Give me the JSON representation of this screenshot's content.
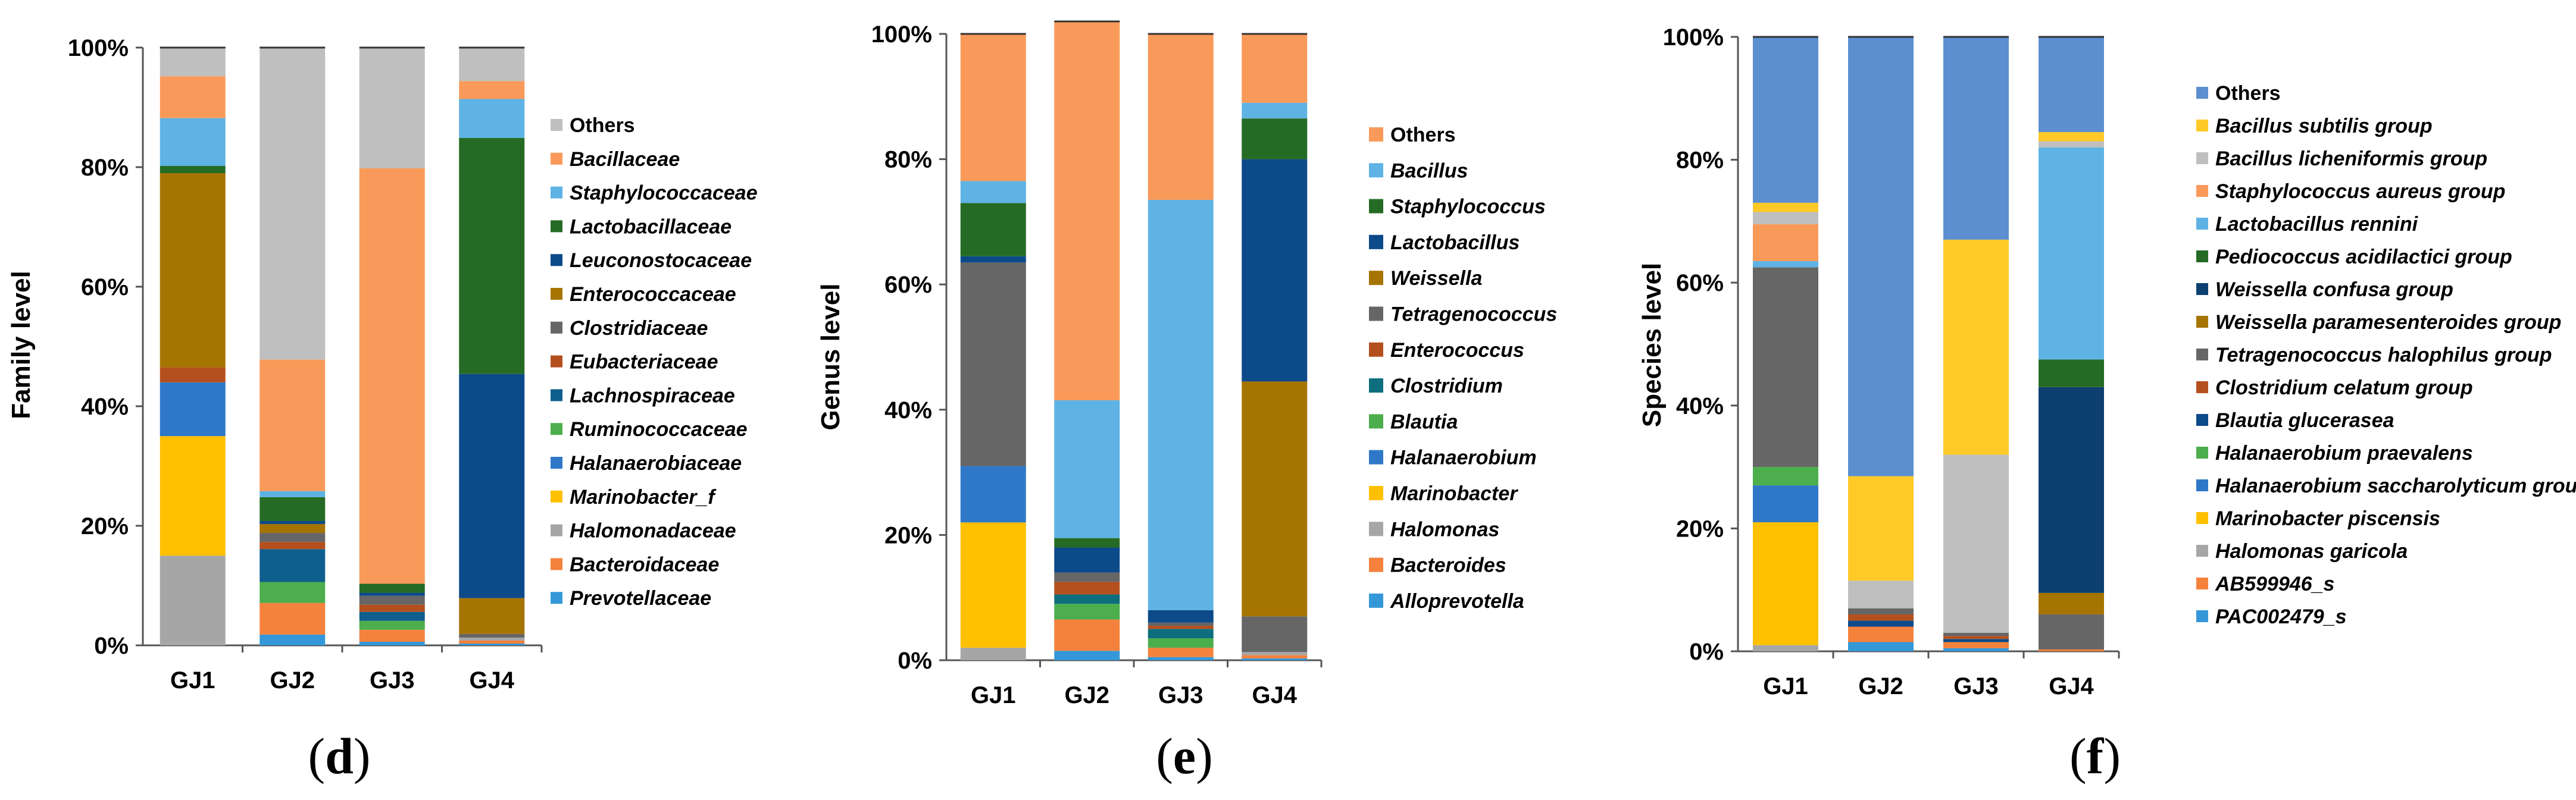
{
  "chart_data": [
    {
      "type": "bar",
      "stacked": true,
      "panel": "d",
      "ylabel": "Family level",
      "yticks": [
        "0%",
        "20%",
        "40%",
        "60%",
        "80%",
        "100%"
      ],
      "ylim": [
        0,
        100
      ],
      "categories": [
        "GJ1",
        "GJ2",
        "GJ3",
        "GJ4"
      ],
      "series": [
        {
          "name": "Prevotellaceae",
          "italic": true,
          "color": "#3498d8",
          "values": [
            0,
            1.8,
            0.6,
            0.3
          ]
        },
        {
          "name": "Bacteroidaceae",
          "italic": true,
          "color": "#f5823c",
          "values": [
            0,
            5.3,
            2.0,
            0.5
          ]
        },
        {
          "name": "Halomonadaceae",
          "italic": true,
          "color": "#a6a6a6",
          "values": [
            15,
            0,
            0,
            0.5
          ]
        },
        {
          "name": "Marinobacter_f",
          "italic": true,
          "color": "#ffc000",
          "values": [
            20,
            0,
            0,
            0
          ]
        },
        {
          "name": "Halanaerobiaceae",
          "italic": true,
          "color": "#2f78c8",
          "values": [
            9,
            0,
            0,
            0
          ]
        },
        {
          "name": "Ruminococcaceae",
          "italic": true,
          "color": "#4cae4c",
          "values": [
            0,
            3.5,
            1.5,
            0
          ]
        },
        {
          "name": "Lachnospiraceae",
          "italic": true,
          "color": "#0e5e8e",
          "values": [
            0,
            5.5,
            1.5,
            0
          ]
        },
        {
          "name": "Eubacteriaceae",
          "italic": true,
          "color": "#b4501e",
          "values": [
            2.5,
            1.2,
            1.2,
            0
          ]
        },
        {
          "name": "Clostridiaceae",
          "italic": true,
          "color": "#666666",
          "values": [
            0,
            1.5,
            1.5,
            0.6
          ]
        },
        {
          "name": "Enterococcaceae",
          "italic": true,
          "color": "#a67400",
          "values": [
            32.5,
            1.5,
            0,
            6
          ]
        },
        {
          "name": "Leuconostocaceae",
          "italic": true,
          "color": "#0c4a8a",
          "values": [
            0,
            0.5,
            0.5,
            37.5
          ]
        },
        {
          "name": "Lactobacillaceae",
          "italic": true,
          "color": "#256b25",
          "values": [
            1.2,
            4.0,
            1.5,
            39.5
          ]
        },
        {
          "name": "Staphylococcaceae",
          "italic": true,
          "color": "#5eb3e4",
          "values": [
            8,
            1.0,
            0,
            6.5
          ]
        },
        {
          "name": "Bacillaceae",
          "italic": true,
          "color": "#fa9a5a",
          "values": [
            7,
            22.0,
            69.5,
            3
          ]
        },
        {
          "name": "Others",
          "italic": false,
          "color": "#bfbfbf",
          "values": [
            4.8,
            52.2,
            20.2,
            5.6
          ]
        }
      ]
    },
    {
      "type": "bar",
      "stacked": true,
      "panel": "e",
      "ylabel": "Genus  level",
      "yticks": [
        "0%",
        "20%",
        "40%",
        "60%",
        "80%",
        "100%"
      ],
      "ylim": [
        0,
        100
      ],
      "categories": [
        "GJ1",
        "GJ2",
        "GJ3",
        "GJ4"
      ],
      "series": [
        {
          "name": "Alloprevotella",
          "italic": true,
          "color": "#3498d8",
          "values": [
            0,
            1.5,
            0.5,
            0.3
          ]
        },
        {
          "name": "Bacteroides",
          "italic": true,
          "color": "#f5823c",
          "values": [
            0,
            5.0,
            1.5,
            0.5
          ]
        },
        {
          "name": "Halomonas",
          "italic": true,
          "color": "#a6a6a6",
          "values": [
            2,
            0,
            0,
            0.5
          ]
        },
        {
          "name": "Marinobacter",
          "italic": true,
          "color": "#ffc000",
          "values": [
            20,
            0,
            0,
            0
          ]
        },
        {
          "name": "Halanaerobium",
          "italic": true,
          "color": "#2f78c8",
          "values": [
            9,
            0,
            0,
            0
          ]
        },
        {
          "name": "Blautia",
          "italic": true,
          "color": "#4cae4c",
          "values": [
            0,
            2.5,
            1.5,
            0
          ]
        },
        {
          "name": "Clostridium",
          "italic": true,
          "color": "#0e6e7e",
          "values": [
            0,
            1.5,
            1.5,
            0
          ]
        },
        {
          "name": "Enterococcus",
          "italic": true,
          "color": "#b4501e",
          "values": [
            0,
            2.0,
            0.5,
            0
          ]
        },
        {
          "name": "Tetragenococcus",
          "italic": true,
          "color": "#666666",
          "values": [
            32.5,
            1.5,
            0.5,
            5.7
          ]
        },
        {
          "name": "Weissella",
          "italic": true,
          "color": "#a67400",
          "values": [
            0,
            0,
            0,
            37.5
          ]
        },
        {
          "name": "Lactobacillus",
          "italic": true,
          "color": "#0c4a8a",
          "values": [
            1,
            4.0,
            2.0,
            35.5
          ]
        },
        {
          "name": "Staphylococcus",
          "italic": true,
          "color": "#256b25",
          "values": [
            8.5,
            1.5,
            0,
            6.5
          ]
        },
        {
          "name": "Bacillus",
          "italic": true,
          "color": "#5eb3e4",
          "values": [
            3.5,
            22.0,
            65.5,
            2.5
          ]
        },
        {
          "name": "Others",
          "italic": false,
          "color": "#fa9a5a",
          "values": [
            23.5,
            60.5,
            26.5,
            11
          ]
        }
      ]
    },
    {
      "type": "bar",
      "stacked": true,
      "panel": "f",
      "ylabel": "Species level",
      "yticks": [
        "0%",
        "20%",
        "40%",
        "60%",
        "80%",
        "100%"
      ],
      "ylim": [
        0,
        100
      ],
      "categories": [
        "GJ1",
        "GJ2",
        "GJ3",
        "GJ4"
      ],
      "series": [
        {
          "name": "PAC002479_s",
          "italic": true,
          "color": "#3498d8",
          "values": [
            0,
            1.5,
            0.5,
            0
          ]
        },
        {
          "name": "AB599946_s",
          "italic": true,
          "color": "#f5823c",
          "values": [
            0,
            2.5,
            1.0,
            0.3
          ]
        },
        {
          "name": "Halomonas garicola",
          "italic": true,
          "color": "#a6a6a6",
          "values": [
            1,
            0,
            0,
            0
          ]
        },
        {
          "name": "Marinobacter piscensis",
          "italic": true,
          "color": "#ffc000",
          "values": [
            20,
            0,
            0,
            0
          ]
        },
        {
          "name": "Halanaerobium saccharolyticum group",
          "italic": true,
          "color": "#2f78c8",
          "values": [
            6,
            0,
            0,
            0
          ]
        },
        {
          "name": "Halanaerobium praevalens",
          "italic": true,
          "color": "#4cae4c",
          "values": [
            3,
            0,
            0,
            0
          ]
        },
        {
          "name": "Blautia glucerasea",
          "italic": true,
          "color": "#0c4a8a",
          "values": [
            0,
            1.0,
            0.5,
            0
          ]
        },
        {
          "name": "Clostridium celatum group",
          "italic": true,
          "color": "#b4501e",
          "values": [
            0,
            1.0,
            0.5,
            0
          ]
        },
        {
          "name": "Tetragenococcus halophilus group",
          "italic": true,
          "color": "#666666",
          "values": [
            32.5,
            1.0,
            0.5,
            5.7
          ]
        },
        {
          "name": "Weissella paramesenteroides group",
          "italic": true,
          "color": "#a67400",
          "values": [
            0,
            0,
            0,
            3.5
          ]
        },
        {
          "name": "Weissella confusa group",
          "italic": true,
          "color": "#0d3f70",
          "values": [
            0,
            0,
            0,
            33.5
          ]
        },
        {
          "name": "Pediococcus acidilactici group",
          "italic": true,
          "color": "#256b25",
          "values": [
            0,
            0,
            0,
            4.5
          ]
        },
        {
          "name": "Lactobacillus rennini",
          "italic": true,
          "color": "#5eb3e4",
          "values": [
            1,
            0,
            0,
            34.5
          ]
        },
        {
          "name": "Staphylococcus aureus group",
          "italic": true,
          "color": "#fa9a5a",
          "values": [
            6,
            0,
            0,
            0
          ]
        },
        {
          "name": "Bacillus licheniformis group",
          "italic": true,
          "color": "#bfbfbf",
          "values": [
            2,
            4.5,
            29.0,
            1
          ]
        },
        {
          "name": "Bacillus subtilis group",
          "italic": true,
          "color": "#ffc928",
          "values": [
            1.5,
            17.0,
            35.0,
            1.5
          ]
        },
        {
          "name": "Others",
          "italic": false,
          "color": "#5b8fd0",
          "values": [
            27,
            71.5,
            33.0,
            15.5
          ]
        }
      ]
    }
  ],
  "panel_labels": [
    "(d)",
    "(e)",
    "(f)"
  ],
  "panel_letters": [
    "d",
    "e",
    "f"
  ]
}
